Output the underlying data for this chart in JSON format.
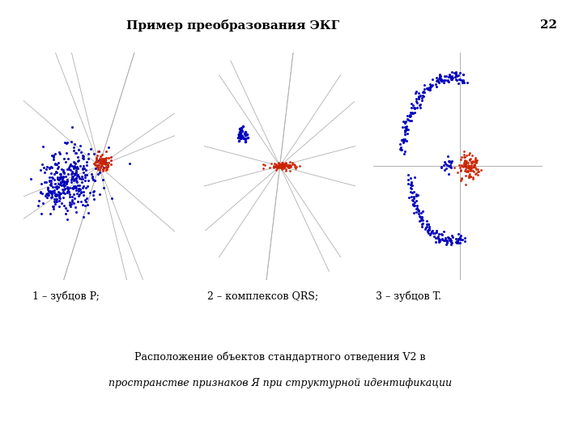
{
  "title": "Пример преобразования ЭКГ",
  "page_number": "22",
  "label1": "1 – зубцов P;",
  "label2": "2 – комплексов QRS;",
  "label3": "3 – зубцов T.",
  "caption_line1": "Расположение объектов стандартного отведения V2 в",
  "caption_line2": "пространстве признаков Я при структурной идентификации",
  "bg_color": "#ffffff",
  "text_color": "#000000",
  "blue_color": "#0000bb",
  "red_color": "#cc2200",
  "gray_line_color": "#b0b0b0"
}
